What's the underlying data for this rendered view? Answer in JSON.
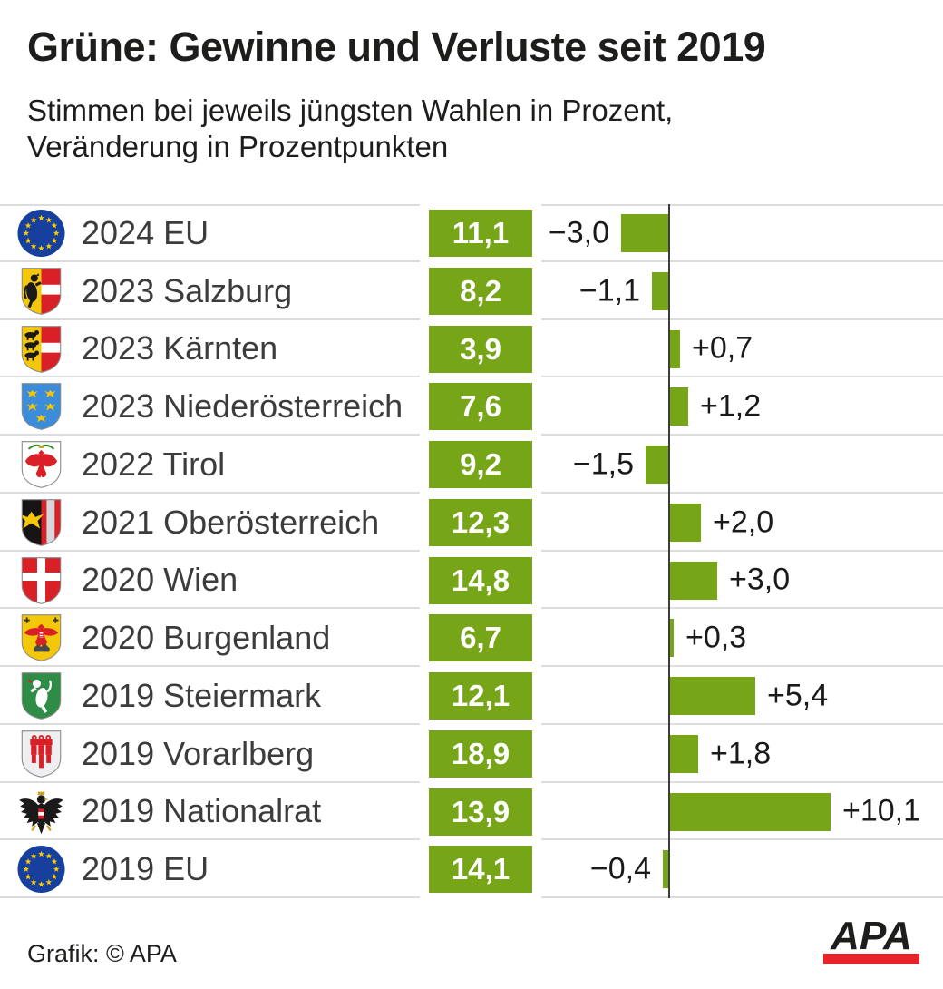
{
  "header": {
    "title": "Grüne: Gewinne und Verluste seit 2019",
    "subtitle_line1": "Stimmen bei jeweils jüngsten Wahlen in Prozent,",
    "subtitle_line2": "Veränderung in Prozentpunkten"
  },
  "chart_data": {
    "type": "bar",
    "orientation": "horizontal",
    "title": "Grüne: Gewinne und Verluste seit 2019",
    "subtitle": "Stimmen bei jeweils jüngsten Wahlen in Prozent, Veränderung in Prozentpunkten",
    "unit_value": "Prozent",
    "unit_change": "Prozentpunkte",
    "axis": {
      "zero_line": true,
      "x_range_points": [
        -3.5,
        10.5
      ],
      "grid": "row-separators"
    },
    "categories": [
      "2024 EU",
      "2023 Salzburg",
      "2023 Kärnten",
      "2023 Niederösterreich",
      "2022 Tirol",
      "2021 Oberösterreich",
      "2020 Wien",
      "2020 Burgenland",
      "2019 Steiermark",
      "2019 Vorarlberg",
      "2019 Nationalrat",
      "2019 EU"
    ],
    "series": [
      {
        "name": "Stimmen in Prozent",
        "values": [
          11.1,
          8.2,
          3.9,
          7.6,
          9.2,
          12.3,
          14.8,
          6.7,
          12.1,
          18.9,
          13.9,
          14.1
        ]
      },
      {
        "name": "Veränderung in Prozentpunkten",
        "values": [
          -3.0,
          -1.1,
          0.7,
          1.2,
          -1.5,
          2.0,
          3.0,
          0.3,
          5.4,
          1.8,
          10.1,
          -0.4
        ]
      }
    ],
    "rows": [
      {
        "label": "2024 EU",
        "icon": "eu-flag-icon",
        "value": 11.1,
        "value_label": "11,1",
        "change": -3.0,
        "change_label": "−3,0"
      },
      {
        "label": "2023 Salzburg",
        "icon": "salzburg-coat-of-arms-icon",
        "value": 8.2,
        "value_label": "8,2",
        "change": -1.1,
        "change_label": "−1,1"
      },
      {
        "label": "2023 Kärnten",
        "icon": "kaernten-coat-of-arms-icon",
        "value": 3.9,
        "value_label": "3,9",
        "change": 0.7,
        "change_label": "+0,7"
      },
      {
        "label": "2023 Niederösterreich",
        "icon": "niederoesterreich-coat-of-arms-icon",
        "value": 7.6,
        "value_label": "7,6",
        "change": 1.2,
        "change_label": "+1,2"
      },
      {
        "label": "2022 Tirol",
        "icon": "tirol-coat-of-arms-icon",
        "value": 9.2,
        "value_label": "9,2",
        "change": -1.5,
        "change_label": "−1,5"
      },
      {
        "label": "2021 Oberösterreich",
        "icon": "oberoesterreich-coat-of-arms-icon",
        "value": 12.3,
        "value_label": "12,3",
        "change": 2.0,
        "change_label": "+2,0"
      },
      {
        "label": "2020 Wien",
        "icon": "wien-coat-of-arms-icon",
        "value": 14.8,
        "value_label": "14,8",
        "change": 3.0,
        "change_label": "+3,0"
      },
      {
        "label": "2020 Burgenland",
        "icon": "burgenland-coat-of-arms-icon",
        "value": 6.7,
        "value_label": "6,7",
        "change": 0.3,
        "change_label": "+0,3"
      },
      {
        "label": "2019 Steiermark",
        "icon": "steiermark-coat-of-arms-icon",
        "value": 12.1,
        "value_label": "12,1",
        "change": 5.4,
        "change_label": "+5,4"
      },
      {
        "label": "2019 Vorarlberg",
        "icon": "vorarlberg-coat-of-arms-icon",
        "value": 18.9,
        "value_label": "18,9",
        "change": 1.8,
        "change_label": "+1,8"
      },
      {
        "label": "2019 Nationalrat",
        "icon": "bundesadler-icon",
        "value": 13.9,
        "value_label": "13,9",
        "change": 10.1,
        "change_label": "+10,1"
      },
      {
        "label": "2019 EU",
        "icon": "eu-flag-icon",
        "value": 14.1,
        "value_label": "14,1",
        "change": -0.4,
        "change_label": "−0,4"
      }
    ]
  },
  "colors": {
    "bar_green": "#76A617",
    "logo_red": "#E8232A",
    "separator_gray": "#DCDCDC",
    "axis_dark": "#3D3D3D"
  },
  "footer": {
    "credit": "Grafik: © APA",
    "logo_text": "APA"
  }
}
